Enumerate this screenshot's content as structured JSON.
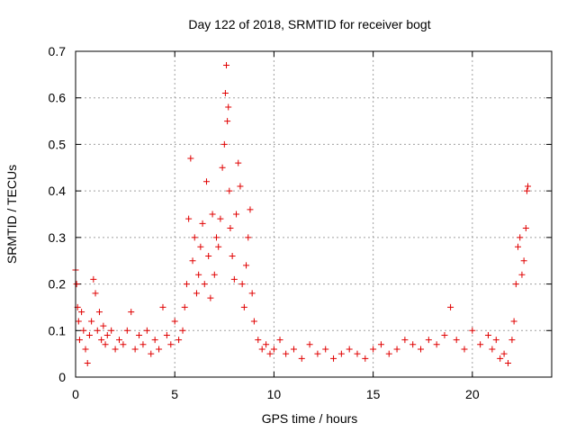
{
  "chart_data": {
    "type": "scatter",
    "title": "Day 122 of 2018, SRMTID for receiver bogt",
    "xlabel": "GPS time / hours",
    "ylabel": "SRMTID / TECUs",
    "xlim": [
      0,
      24
    ],
    "ylim": [
      0,
      0.7
    ],
    "xticks": [
      0,
      5,
      10,
      15,
      20
    ],
    "xtick_labels": [
      "0",
      "5",
      "10",
      "15",
      "20"
    ],
    "yticks": [
      0,
      0.1,
      0.2,
      0.3,
      0.4,
      0.5,
      0.6,
      0.7
    ],
    "ytick_labels": [
      "0",
      "0.1",
      "0.2",
      "0.3",
      "0.4",
      "0.5",
      "0.6",
      "0.7"
    ],
    "grid": true,
    "marker": "+",
    "series": [
      {
        "name": "SRMTID",
        "color": "#e00000",
        "x": [
          0.0,
          0.05,
          0.1,
          0.15,
          0.2,
          0.3,
          0.4,
          0.5,
          0.6,
          0.7,
          0.8,
          0.9,
          1.0,
          1.1,
          1.2,
          1.3,
          1.4,
          1.5,
          1.6,
          1.8,
          2.0,
          2.2,
          2.4,
          2.6,
          2.8,
          3.0,
          3.2,
          3.4,
          3.6,
          3.8,
          4.0,
          4.2,
          4.4,
          4.6,
          4.8,
          5.0,
          5.2,
          5.4,
          5.5,
          5.6,
          5.7,
          5.8,
          5.9,
          6.0,
          6.1,
          6.2,
          6.3,
          6.4,
          6.5,
          6.6,
          6.7,
          6.8,
          6.9,
          7.0,
          7.1,
          7.2,
          7.3,
          7.4,
          7.5,
          7.55,
          7.6,
          7.65,
          7.7,
          7.75,
          7.8,
          7.9,
          8.0,
          8.1,
          8.2,
          8.3,
          8.4,
          8.5,
          8.6,
          8.7,
          8.8,
          8.9,
          9.0,
          9.2,
          9.4,
          9.6,
          9.8,
          10.0,
          10.3,
          10.6,
          11.0,
          11.4,
          11.8,
          12.2,
          12.6,
          13.0,
          13.4,
          13.8,
          14.2,
          14.6,
          15.0,
          15.4,
          15.8,
          16.2,
          16.6,
          17.0,
          17.4,
          17.8,
          18.2,
          18.6,
          18.9,
          19.2,
          19.6,
          20.0,
          20.4,
          20.8,
          21.0,
          21.2,
          21.4,
          21.6,
          21.8,
          22.0,
          22.1,
          22.2,
          22.3,
          22.4,
          22.5,
          22.6,
          22.7,
          22.75,
          22.8
        ],
        "y": [
          0.23,
          0.2,
          0.15,
          0.12,
          0.08,
          0.14,
          0.1,
          0.06,
          0.03,
          0.09,
          0.12,
          0.21,
          0.18,
          0.1,
          0.14,
          0.08,
          0.11,
          0.07,
          0.09,
          0.1,
          0.06,
          0.08,
          0.07,
          0.1,
          0.14,
          0.06,
          0.09,
          0.07,
          0.1,
          0.05,
          0.08,
          0.06,
          0.15,
          0.09,
          0.07,
          0.12,
          0.08,
          0.1,
          0.15,
          0.2,
          0.34,
          0.47,
          0.25,
          0.3,
          0.18,
          0.22,
          0.28,
          0.33,
          0.2,
          0.42,
          0.26,
          0.17,
          0.35,
          0.22,
          0.3,
          0.28,
          0.34,
          0.45,
          0.5,
          0.61,
          0.67,
          0.55,
          0.58,
          0.4,
          0.32,
          0.26,
          0.21,
          0.35,
          0.46,
          0.41,
          0.2,
          0.15,
          0.24,
          0.3,
          0.36,
          0.18,
          0.12,
          0.08,
          0.06,
          0.07,
          0.05,
          0.06,
          0.08,
          0.05,
          0.06,
          0.04,
          0.07,
          0.05,
          0.06,
          0.04,
          0.05,
          0.06,
          0.05,
          0.04,
          0.06,
          0.07,
          0.05,
          0.06,
          0.08,
          0.07,
          0.06,
          0.08,
          0.07,
          0.09,
          0.15,
          0.08,
          0.06,
          0.1,
          0.07,
          0.09,
          0.06,
          0.08,
          0.04,
          0.05,
          0.03,
          0.08,
          0.12,
          0.2,
          0.28,
          0.3,
          0.22,
          0.25,
          0.32,
          0.4,
          0.41
        ]
      }
    ]
  }
}
